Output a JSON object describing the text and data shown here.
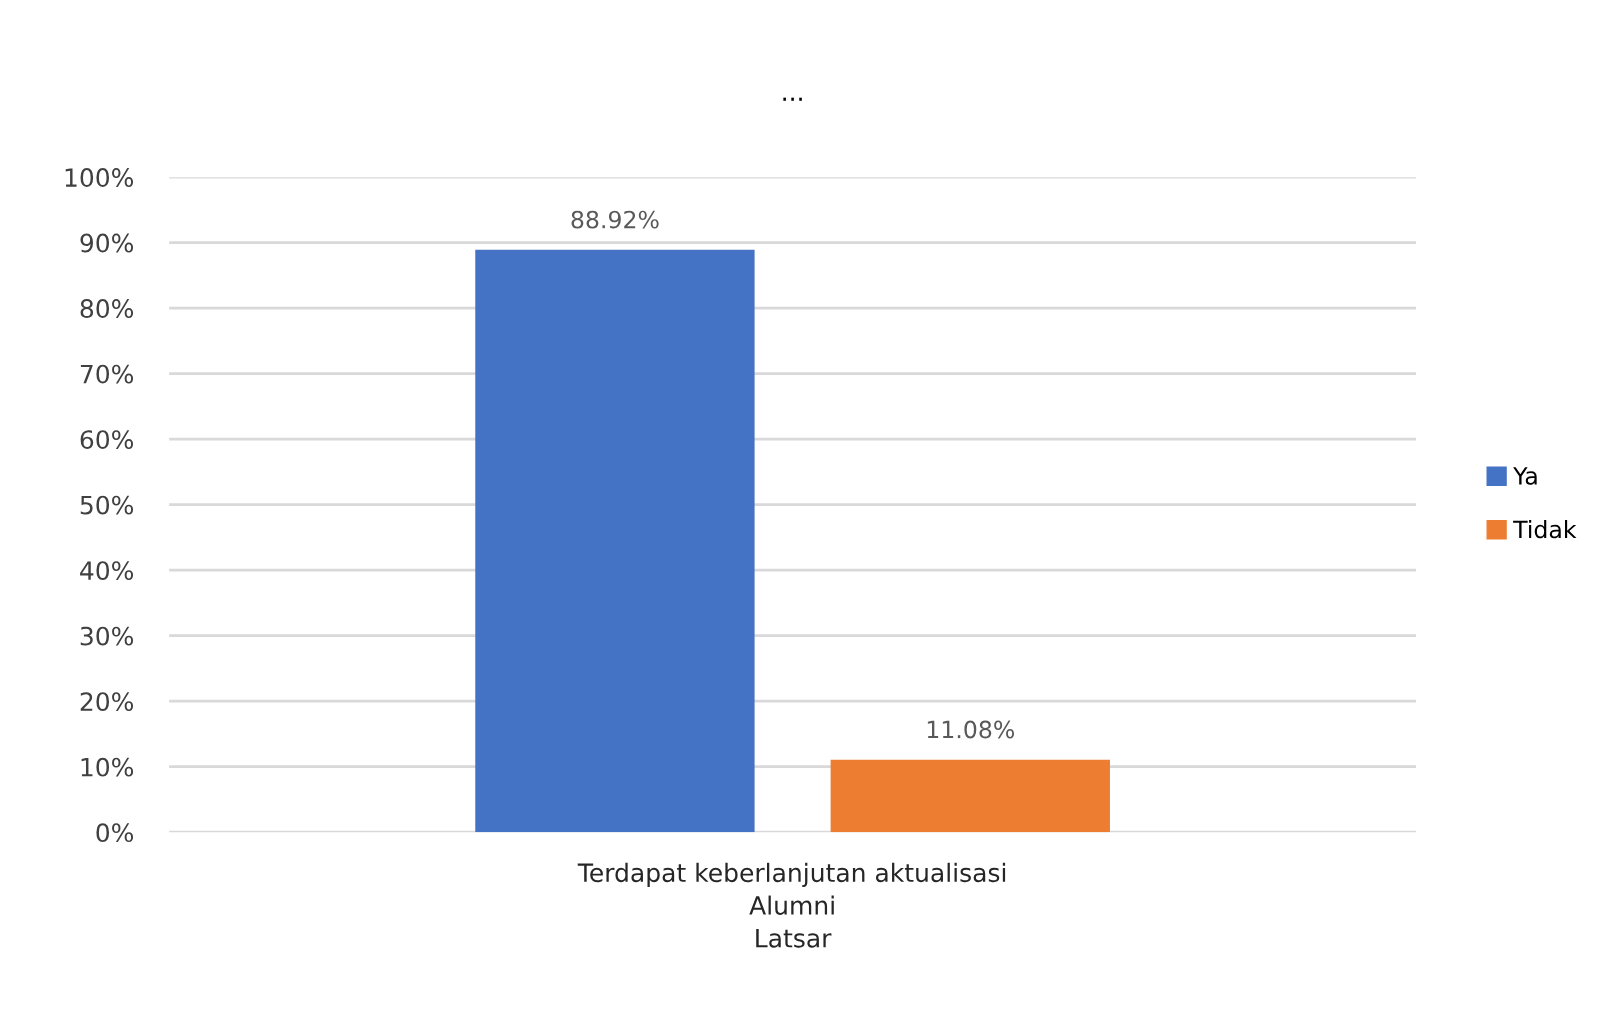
{
  "chart_data": {
    "type": "bar",
    "title": "...",
    "categories": [
      "Terdapat keberlanjutan aktualisasi\nAlumni\nLatsar"
    ],
    "series": [
      {
        "name": "Ya",
        "color": "#4472c4",
        "values": [
          88.92
        ],
        "value_labels": [
          "88.92%"
        ]
      },
      {
        "name": "Tidak",
        "color": "#ed7d31",
        "values": [
          11.08
        ],
        "value_labels": [
          "11.08%"
        ]
      }
    ],
    "ylim": [
      0,
      100
    ],
    "yticks": [
      {
        "value": 0,
        "label": "0%"
      },
      {
        "value": 10,
        "label": "10%"
      },
      {
        "value": 20,
        "label": "20%"
      },
      {
        "value": 30,
        "label": "30%"
      },
      {
        "value": 40,
        "label": "40%"
      },
      {
        "value": 50,
        "label": "50%"
      },
      {
        "value": 60,
        "label": "60%"
      },
      {
        "value": 70,
        "label": "70%"
      },
      {
        "value": 80,
        "label": "80%"
      },
      {
        "value": 90,
        "label": "90%"
      },
      {
        "value": 100,
        "label": "100%"
      }
    ],
    "grid": "y",
    "legend": "right"
  }
}
